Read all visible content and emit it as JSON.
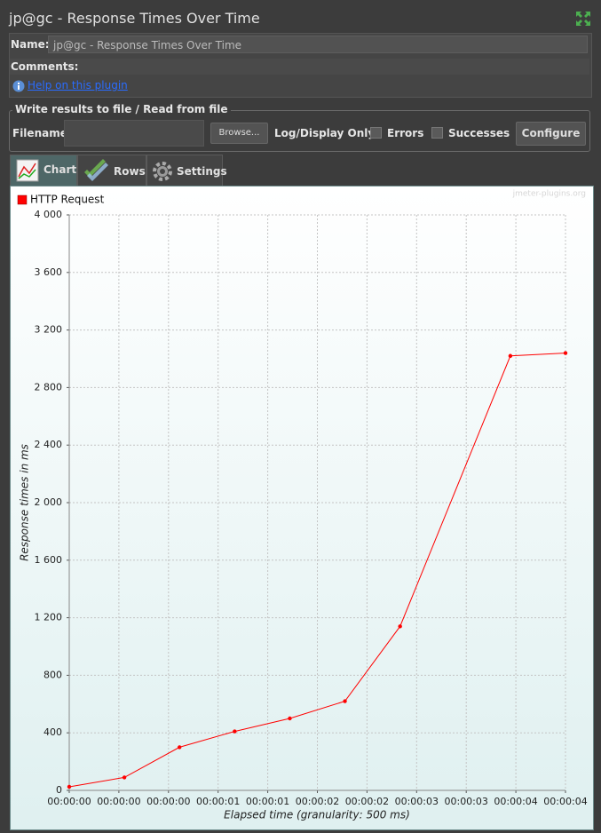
{
  "window": {
    "title": "jp@gc - Response Times Over Time"
  },
  "form": {
    "name_label": "Name:",
    "name_value": "jp@gc - Response Times Over Time",
    "comments_label": "Comments:",
    "help_link": "Help on this plugin"
  },
  "file_panel": {
    "title": "Write results to file / Read from file",
    "filename_label": "Filename",
    "browse_button": "Browse...",
    "log_label": "Log/Display Only:",
    "errors_label": "Errors",
    "successes_label": "Successes",
    "configure_button": "Configure"
  },
  "tabs": [
    "Chart",
    "Rows",
    "Settings"
  ],
  "chart_data": {
    "type": "line",
    "watermark": "jmeter-plugins.org",
    "x_label": "Elapsed time (granularity: 500 ms)",
    "y_label": "Response times in ms",
    "x": [
      0,
      0.5,
      1,
      1.5,
      2,
      2.5,
      3,
      4,
      4.5
    ],
    "series": [
      {
        "name": "HTTP Request",
        "color": "#ff0000",
        "values": [
          25,
          90,
          300,
          410,
          500,
          620,
          1140,
          3020,
          3040
        ]
      }
    ],
    "xlim": [
      0,
      4.5
    ],
    "xticks": [
      {
        "value": 0,
        "label": "00:00:00"
      },
      {
        "value": 0.45,
        "label": "00:00:00"
      },
      {
        "value": 0.9,
        "label": "00:00:00"
      },
      {
        "value": 1.35,
        "label": "00:00:01"
      },
      {
        "value": 1.8,
        "label": "00:00:01"
      },
      {
        "value": 2.25,
        "label": "00:00:02"
      },
      {
        "value": 2.7,
        "label": "00:00:02"
      },
      {
        "value": 3.15,
        "label": "00:00:03"
      },
      {
        "value": 3.6,
        "label": "00:00:03"
      },
      {
        "value": 4.05,
        "label": "00:00:04"
      },
      {
        "value": 4.5,
        "label": "00:00:04"
      }
    ],
    "ylim": [
      0,
      4000
    ],
    "yticks": [
      0,
      400,
      800,
      {
        "value": 1200,
        "label": "1 200"
      },
      {
        "value": 1600,
        "label": "1 600"
      },
      {
        "value": 2000,
        "label": "2 000"
      },
      {
        "value": 2400,
        "label": "2 400"
      },
      {
        "value": 2800,
        "label": "2 800"
      },
      {
        "value": 3200,
        "label": "3 200"
      },
      {
        "value": 3600,
        "label": "3 600"
      },
      {
        "value": 4000,
        "label": "4 000"
      }
    ],
    "grid": true,
    "legend": "top-left"
  }
}
